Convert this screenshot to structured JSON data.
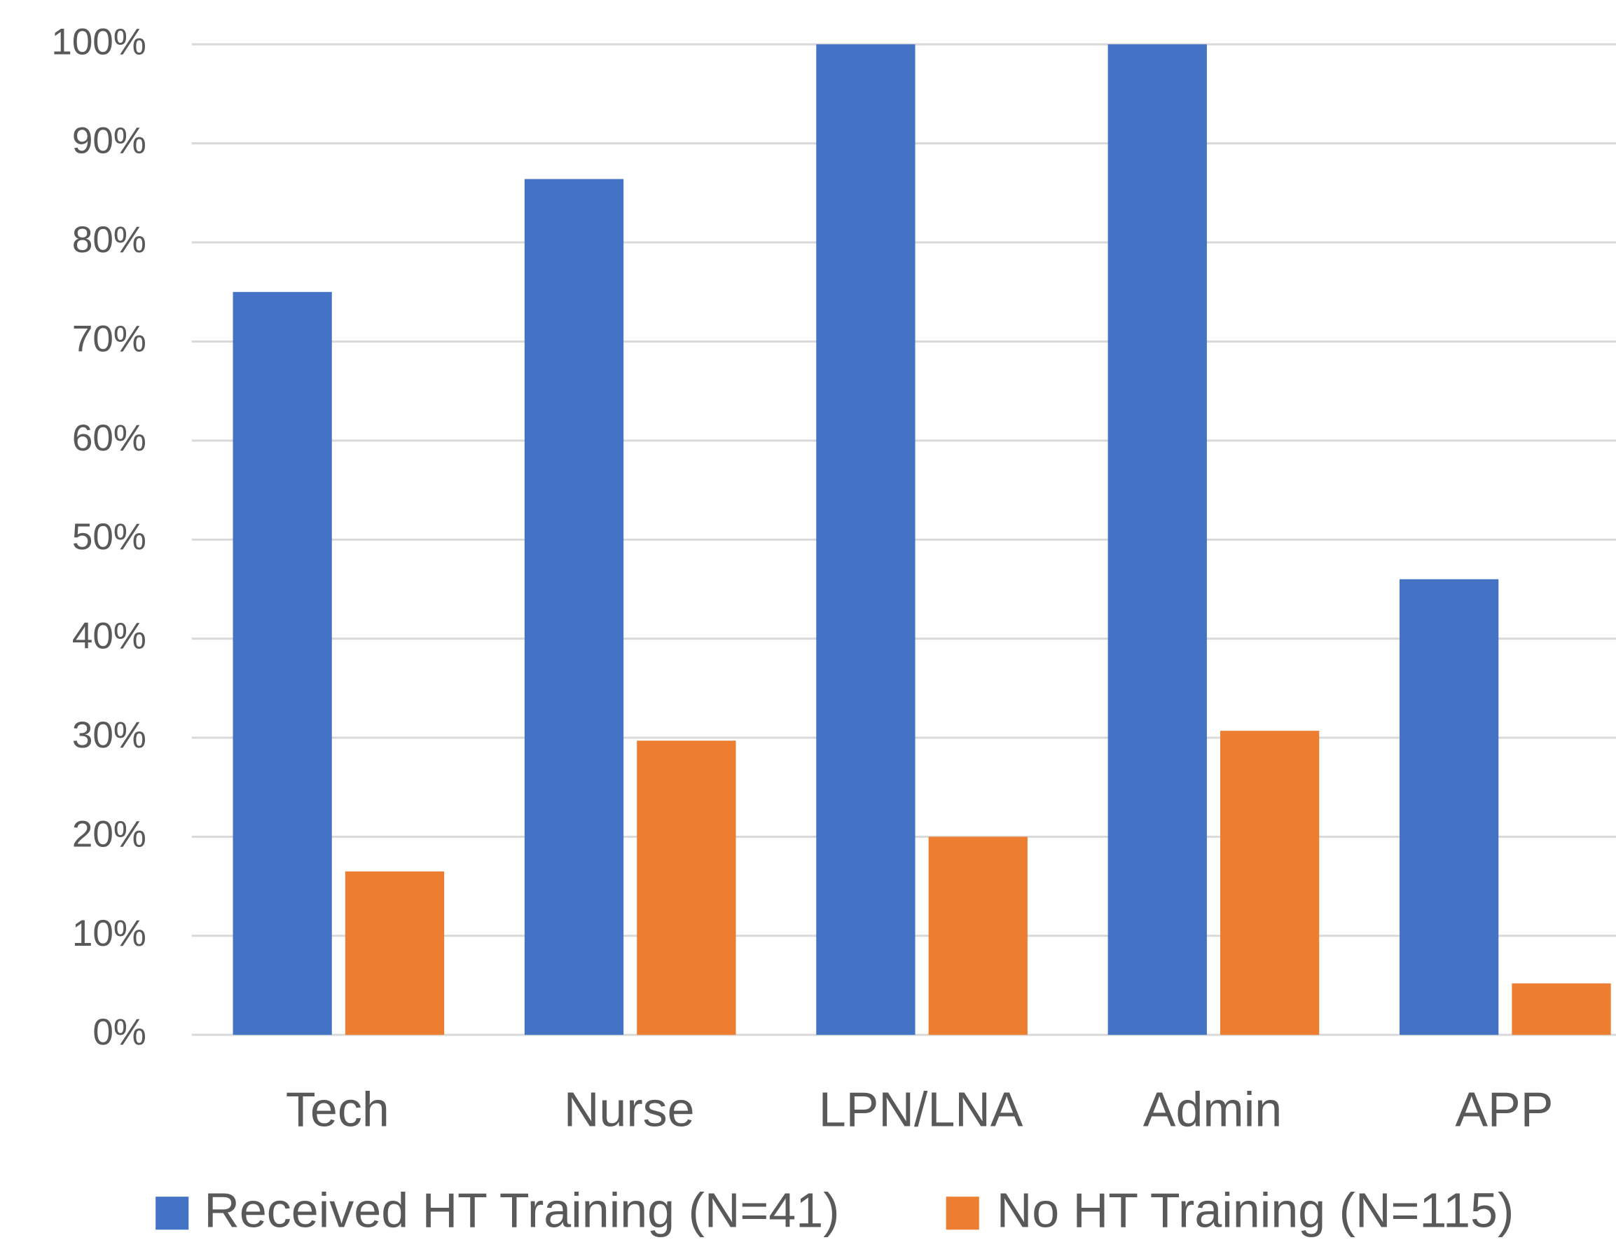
{
  "chart_data": {
    "type": "bar",
    "categories": [
      "Tech",
      "Nurse",
      "LPN/LNA",
      "Admin",
      "APP"
    ],
    "series": [
      {
        "name": "Received HT Training (N=41)",
        "color": "#4472c4",
        "values": [
          75,
          86.4,
          100,
          100,
          46
        ]
      },
      {
        "name": "No HT Training (N=115)",
        "color": "#ed7d31",
        "values": [
          16.5,
          29.7,
          20,
          30.7,
          5.2
        ]
      }
    ],
    "ylim": [
      0,
      100
    ],
    "yticks": [
      {
        "value": 0,
        "label": "0%"
      },
      {
        "value": 10,
        "label": "10%"
      },
      {
        "value": 20,
        "label": "20%"
      },
      {
        "value": 30,
        "label": "30%"
      },
      {
        "value": 40,
        "label": "40%"
      },
      {
        "value": 50,
        "label": "50%"
      },
      {
        "value": 60,
        "label": "60%"
      },
      {
        "value": 70,
        "label": "70%"
      },
      {
        "value": 80,
        "label": "80%"
      },
      {
        "value": 90,
        "label": "90%"
      },
      {
        "value": 100,
        "label": "100%"
      }
    ],
    "grid": true,
    "legend": "bottom"
  }
}
